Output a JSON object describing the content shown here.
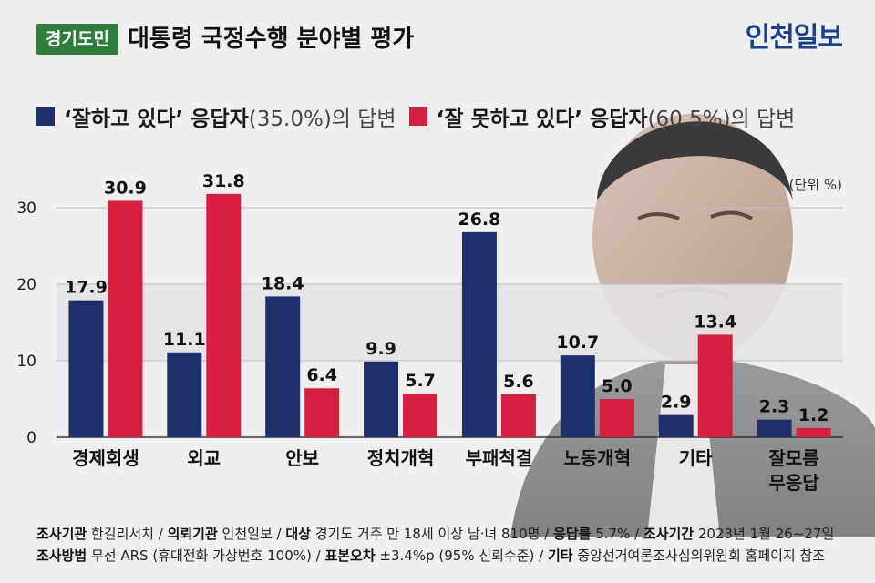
{
  "header": {
    "badge": "경기도민",
    "title": "대통령 국정수행 분야별 평가",
    "brand_part1": "인천",
    "brand_part2": "일보"
  },
  "legend": {
    "good_label": "‘잘하고 있다’ 응답자",
    "good_pct": "(35.0%)의 답변",
    "bad_label": "‘잘 못하고 있다’ 응답자",
    "bad_pct": "(60.5%)의 답변"
  },
  "unit": "(단위 %)",
  "colors": {
    "good": "#1f2f6b",
    "bad": "#d81e3e",
    "badge": "#2e7d3a",
    "band": "#e3e3e3"
  },
  "chart_data": {
    "type": "bar",
    "categories": [
      "경제회생",
      "외교",
      "안보",
      "정치개혁",
      "부패척결",
      "노동개혁",
      "기타",
      "잘모름\n무응답"
    ],
    "series": [
      {
        "name": "‘잘하고 있다’ 응답자",
        "values": [
          17.9,
          11.1,
          18.4,
          9.9,
          26.8,
          10.7,
          2.9,
          2.3
        ]
      },
      {
        "name": "‘잘 못하고 있다’ 응답자",
        "values": [
          30.9,
          31.8,
          6.4,
          5.7,
          5.6,
          5.0,
          13.4,
          1.2
        ]
      }
    ],
    "value_labels": [
      [
        "17.9",
        "11.1",
        "18.4",
        "9.9",
        "26.8",
        "10.7",
        "2.9",
        "2.3"
      ],
      [
        "30.9",
        "31.8",
        "6.4",
        "5.7",
        "5.6",
        "5.0",
        "13.4",
        "1.2"
      ]
    ],
    "yticks": [
      "0",
      "10",
      "20",
      "30"
    ],
    "ylim": [
      0,
      30
    ],
    "legend_position": "top"
  },
  "footer": {
    "line1": [
      {
        "k": "조사기관",
        "v": "한길리서치"
      },
      {
        "k": "의뢰기관",
        "v": "인천일보"
      },
      {
        "k": "대상",
        "v": "경기도 거주 만 18세 이상 남·녀 810명"
      },
      {
        "k": "응답률",
        "v": "5.7%"
      },
      {
        "k": "조사기간",
        "v": "2023년 1월 26~27일"
      }
    ],
    "line2": [
      {
        "k": "조사방법",
        "v": "무선 ARS (휴대전화 가상번호 100%)"
      },
      {
        "k": "표본오차",
        "v": "±3.4%p (95% 신뢰수준)"
      },
      {
        "k": "기타",
        "v": "중앙선거여론조사심의위원회 홈페이지 참조"
      }
    ]
  }
}
